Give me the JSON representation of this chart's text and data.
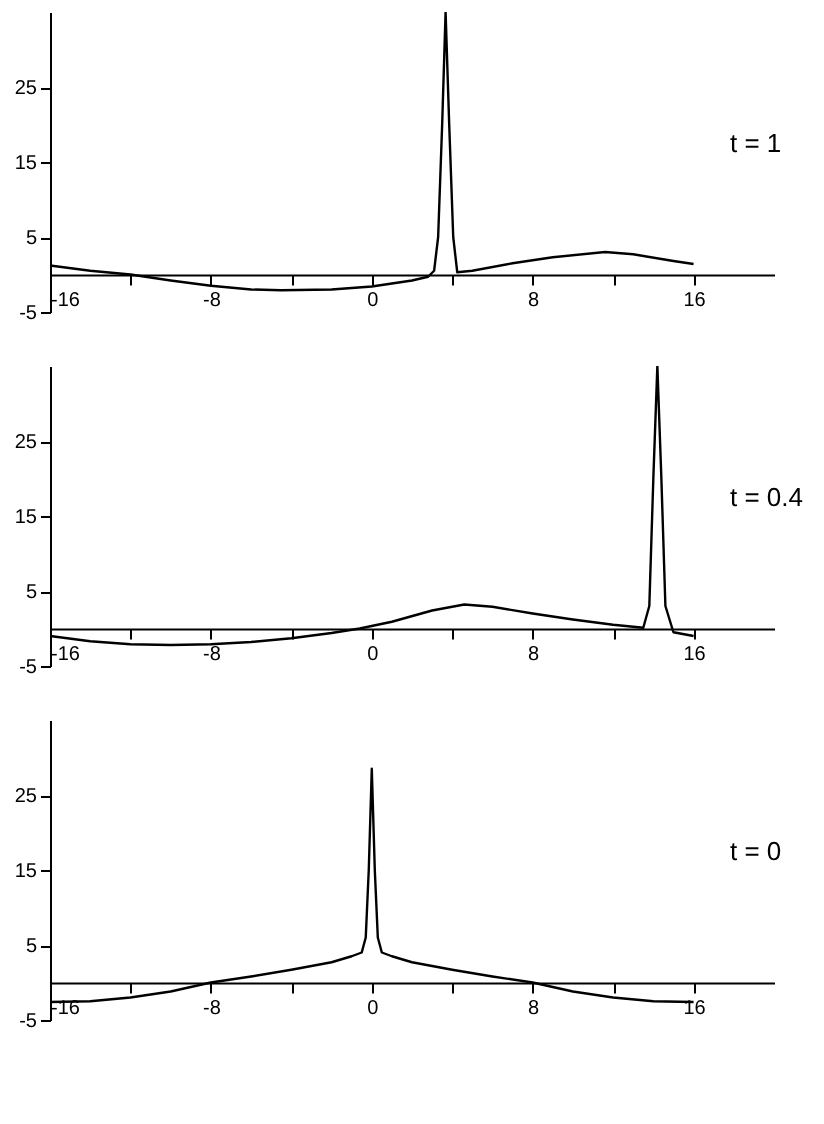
{
  "chart_data": [
    {
      "type": "line",
      "annotations": [
        "t = 1"
      ],
      "xlim": [
        -16,
        20
      ],
      "ylim": [
        -5,
        35
      ],
      "xticks": [
        -16,
        {
          "value": -12,
          "label": null
        },
        -8,
        {
          "value": -4,
          "label": null
        },
        0,
        {
          "value": 4,
          "label": null
        },
        8,
        {
          "value": 12,
          "label": null
        },
        16
      ],
      "yticks": [
        -5,
        5,
        15,
        25
      ],
      "grid": false,
      "x": [
        -16,
        -14,
        -12,
        -10,
        -8,
        -6,
        -4.5,
        -2,
        0,
        2,
        2.8,
        3.1,
        3.3,
        3.5,
        3.67,
        3.85,
        4.05,
        4.25,
        5,
        7,
        9,
        11.6,
        13,
        15,
        16
      ],
      "series": [
        {
          "color": "#000000",
          "values": [
            1.2,
            0.5,
            0,
            -0.8,
            -1.5,
            -2,
            -2.1,
            -2,
            -1.6,
            -0.8,
            -0.3,
            0.5,
            5,
            20,
            35,
            20,
            5,
            0.3,
            0.5,
            1.5,
            2.3,
            3,
            2.7,
            1.8,
            1.4
          ]
        }
      ]
    },
    {
      "type": "line",
      "annotations": [
        "t = 0.4"
      ],
      "xlim": [
        -16,
        20
      ],
      "ylim": [
        -5,
        35
      ],
      "xticks": [
        -16,
        {
          "value": -12,
          "label": null
        },
        -8,
        {
          "value": -4,
          "label": null
        },
        0,
        {
          "value": 4,
          "label": null
        },
        8,
        {
          "value": 12,
          "label": null
        },
        16
      ],
      "yticks": [
        -5,
        5,
        15,
        25
      ],
      "grid": false,
      "x": [
        -16,
        -14,
        -12,
        -10,
        -8,
        -6,
        -4,
        -2,
        -0.6,
        1,
        3,
        4.6,
        6,
        8,
        10,
        12,
        13.5,
        13.8,
        14,
        14.2,
        14.4,
        14.6,
        15,
        16
      ],
      "series": [
        {
          "color": "#000000",
          "values": [
            -1,
            -1.7,
            -2.1,
            -2.2,
            -2.1,
            -1.8,
            -1.3,
            -0.6,
            0,
            0.9,
            2.4,
            3.2,
            2.9,
            2,
            1.2,
            0.5,
            0.1,
            3,
            20,
            35,
            20,
            3,
            -0.5,
            -1
          ]
        }
      ]
    },
    {
      "type": "line",
      "annotations": [
        "t = 0"
      ],
      "xlim": [
        -16,
        20
      ],
      "ylim": [
        -5,
        35
      ],
      "xticks": [
        -16,
        {
          "value": -12,
          "label": null
        },
        -8,
        {
          "value": -4,
          "label": null
        },
        0,
        {
          "value": 4,
          "label": null
        },
        8,
        {
          "value": 12,
          "label": null
        },
        16
      ],
      "yticks": [
        -5,
        5,
        15,
        25
      ],
      "grid": false,
      "x": [
        -16,
        -14,
        -12,
        -10,
        -8,
        -6,
        -4,
        -2,
        -1,
        -0.5,
        -0.3,
        -0.15,
        0,
        0.15,
        0.3,
        0.5,
        1,
        2,
        4,
        6,
        8,
        10,
        12,
        14,
        16
      ],
      "series": [
        {
          "color": "#000000",
          "values": [
            -2.6,
            -2.5,
            -2,
            -1.2,
            0,
            0.8,
            1.7,
            2.7,
            3.5,
            4,
            6,
            15,
            28.5,
            15,
            6,
            4,
            3.5,
            2.7,
            1.7,
            0.8,
            0,
            -1.2,
            -2,
            -2.5,
            -2.6
          ]
        }
      ]
    }
  ]
}
